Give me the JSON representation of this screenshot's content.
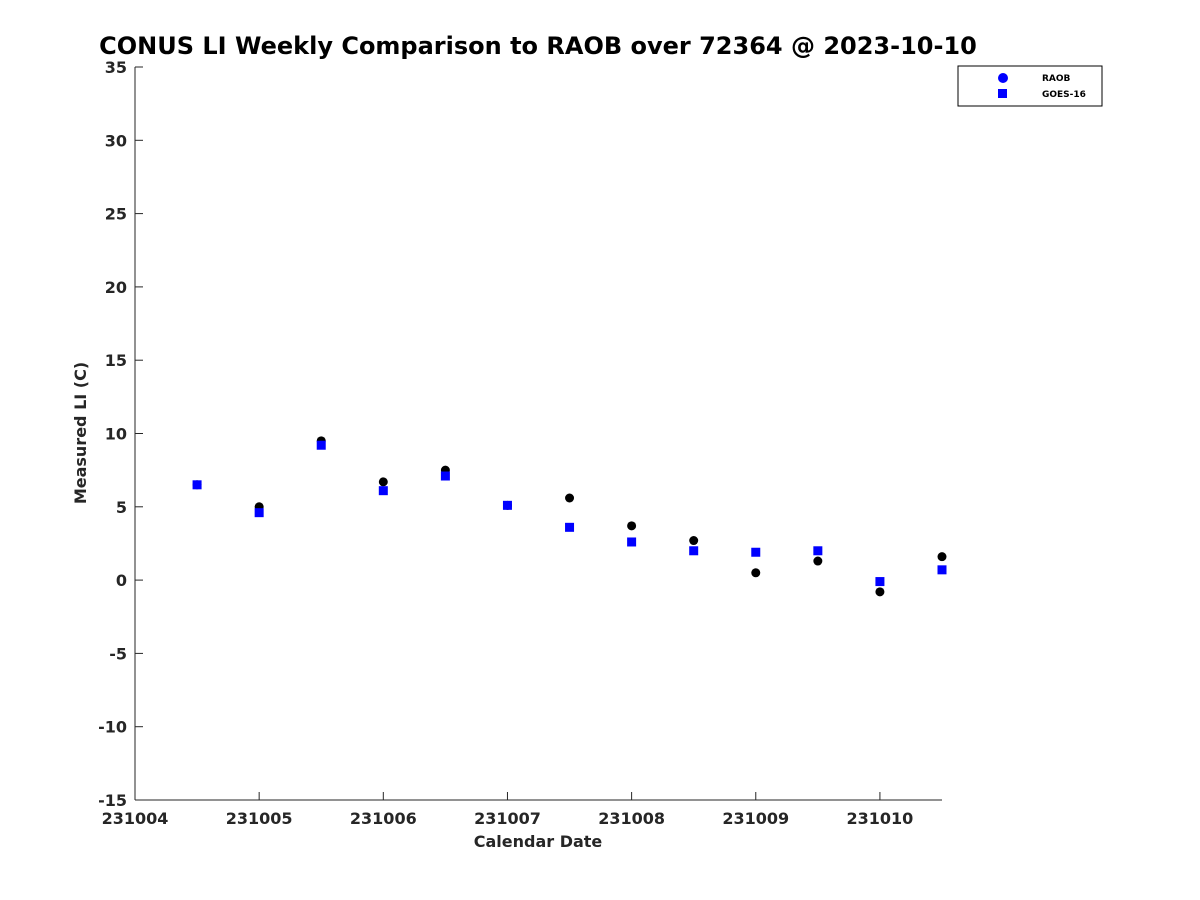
{
  "chart_data": {
    "type": "scatter",
    "title": "CONUS LI Weekly Comparison to RAOB over 72364 @ 2023-10-10",
    "xlabel": "Calendar Date",
    "ylabel": "Measured LI (C)",
    "xlim": [
      231004,
      231010.5
    ],
    "ylim": [
      -15,
      35
    ],
    "x_ticks": [
      231004,
      231005,
      231006,
      231007,
      231008,
      231009,
      231010
    ],
    "x_tick_labels": [
      "231004",
      "231005",
      "231006",
      "231007",
      "231008",
      "231009",
      "231010"
    ],
    "y_ticks": [
      -15,
      -10,
      -5,
      0,
      5,
      10,
      15,
      20,
      25,
      30,
      35
    ],
    "y_tick_labels": [
      "-15",
      "-10",
      "-5",
      "0",
      "5",
      "10",
      "15",
      "20",
      "25",
      "30",
      "35"
    ],
    "grid": false,
    "legend_position": "top-right",
    "series": [
      {
        "name": "RAOB",
        "marker": "circle",
        "legend_color": "#0000ff",
        "color": "#000000",
        "x": [
          231004.5,
          231005,
          231005.5,
          231006,
          231006.5,
          231007,
          231007.5,
          231008,
          231008.5,
          231009,
          231009.5,
          231010,
          231010.5
        ],
        "y": [
          6.5,
          5.0,
          9.5,
          6.7,
          7.5,
          5.1,
          5.6,
          3.7,
          2.7,
          0.5,
          1.3,
          -0.8,
          1.6
        ]
      },
      {
        "name": "GOES-16",
        "marker": "square",
        "legend_color": "#0000ff",
        "color": "#0000ff",
        "x": [
          231004.5,
          231005,
          231005.5,
          231006,
          231006.5,
          231007,
          231007.5,
          231008,
          231008.5,
          231009,
          231009.5,
          231010,
          231010.5
        ],
        "y": [
          6.5,
          4.6,
          9.2,
          6.1,
          7.1,
          5.1,
          3.6,
          2.6,
          2.0,
          1.9,
          2.0,
          -0.1,
          0.7
        ]
      }
    ]
  }
}
